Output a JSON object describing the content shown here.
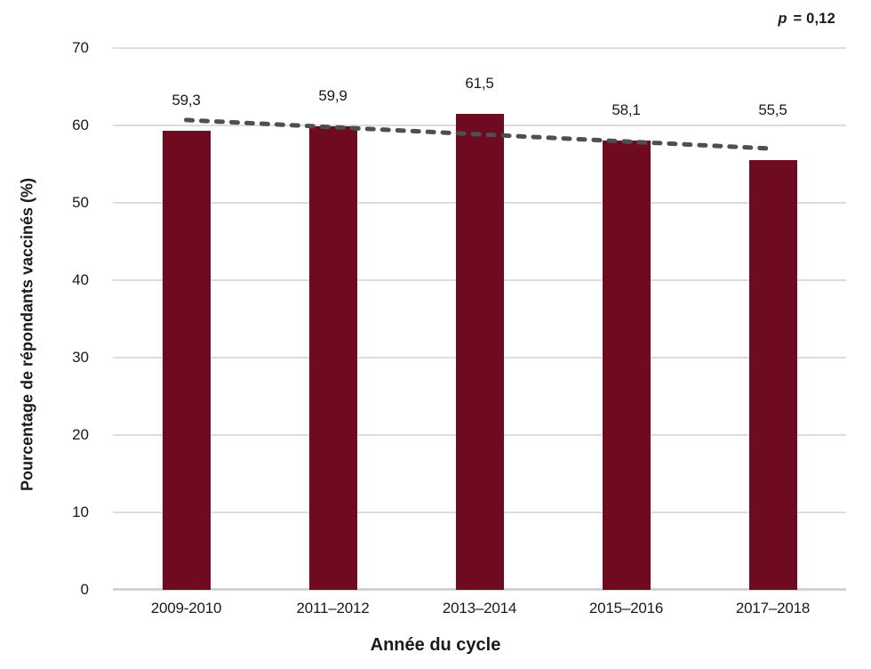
{
  "figure": {
    "p_annotation": {
      "symbol": "p",
      "rest": "= 0,12"
    }
  },
  "chart_data": {
    "type": "bar",
    "title": "",
    "xlabel": "Année du cycle",
    "ylabel": "Pourcentage de répondants vaccinés (%)",
    "categories": [
      "2009-2010",
      "2011–2012",
      "2013–2014",
      "2015–2016",
      "2017–2018"
    ],
    "values": [
      59.3,
      59.9,
      61.5,
      58.1,
      55.5
    ],
    "value_labels": [
      "59,3",
      "59,9",
      "61,5",
      "58,1",
      "55,5"
    ],
    "ylim": [
      0,
      70
    ],
    "yticks": [
      0,
      10,
      20,
      30,
      40,
      50,
      60,
      70
    ],
    "grid": "horizontal",
    "legend": "none",
    "annotation": "p = 0,12",
    "trendline": {
      "type": "linear",
      "style": "dashed",
      "start_value": 60.7,
      "end_value": 57.0
    },
    "colors": {
      "bar": "#6E0B21",
      "trend": "#4F4F4F",
      "gridline": "#DDDDDD",
      "axis_line": "#D2D2D2",
      "text": "#1A1A1A"
    }
  }
}
